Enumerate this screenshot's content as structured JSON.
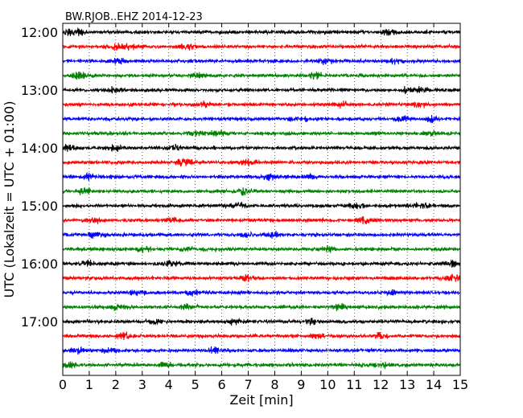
{
  "chart_data": {
    "type": "line",
    "title": "BW.RJOB..EHZ 2014-12-23",
    "xlabel": "Zeit  [min]",
    "ylabel": "UTC (Lokalzeit = UTC + 01:00)",
    "xlim": [
      0,
      15
    ],
    "x_ticks": [
      "0",
      "1",
      "2",
      "3",
      "4",
      "5",
      "6",
      "7",
      "8",
      "9",
      "10",
      "11",
      "12",
      "13",
      "14",
      "15"
    ],
    "y_tick_labels": [
      "12:00",
      "13:00",
      "14:00",
      "15:00",
      "16:00",
      "17:00"
    ],
    "traces_per_hour": 4,
    "trace_count": 24,
    "trace_colors": [
      "#000000",
      "#ff0000",
      "#0000ff",
      "#008000"
    ],
    "vertical_grid": "dotted",
    "series": [
      {
        "name": "",
        "start": "12:00",
        "color": "#000000"
      },
      {
        "name": "",
        "start": "12:15",
        "color": "#ff0000"
      },
      {
        "name": "",
        "start": "12:30",
        "color": "#0000ff"
      },
      {
        "name": "",
        "start": "12:45",
        "color": "#008000"
      },
      {
        "name": "",
        "start": "13:00",
        "color": "#000000"
      },
      {
        "name": "",
        "start": "13:15",
        "color": "#ff0000"
      },
      {
        "name": "",
        "start": "13:30",
        "color": "#0000ff"
      },
      {
        "name": "",
        "start": "13:45",
        "color": "#008000"
      },
      {
        "name": "",
        "start": "14:00",
        "color": "#000000"
      },
      {
        "name": "",
        "start": "14:15",
        "color": "#ff0000"
      },
      {
        "name": "",
        "start": "14:30",
        "color": "#0000ff"
      },
      {
        "name": "",
        "start": "14:45",
        "color": "#008000"
      },
      {
        "name": "",
        "start": "15:00",
        "color": "#000000"
      },
      {
        "name": "",
        "start": "15:15",
        "color": "#ff0000"
      },
      {
        "name": "",
        "start": "15:30",
        "color": "#0000ff"
      },
      {
        "name": "",
        "start": "15:45",
        "color": "#008000"
      },
      {
        "name": "",
        "start": "16:00",
        "color": "#000000"
      },
      {
        "name": "",
        "start": "16:15",
        "color": "#ff0000"
      },
      {
        "name": "",
        "start": "16:30",
        "color": "#0000ff"
      },
      {
        "name": "",
        "start": "16:45",
        "color": "#008000"
      },
      {
        "name": "",
        "start": "17:00",
        "color": "#000000"
      },
      {
        "name": "",
        "start": "17:15",
        "color": "#ff0000"
      },
      {
        "name": "",
        "start": "17:30",
        "color": "#0000ff"
      },
      {
        "name": "",
        "start": "17:45",
        "color": "#008000"
      }
    ]
  }
}
